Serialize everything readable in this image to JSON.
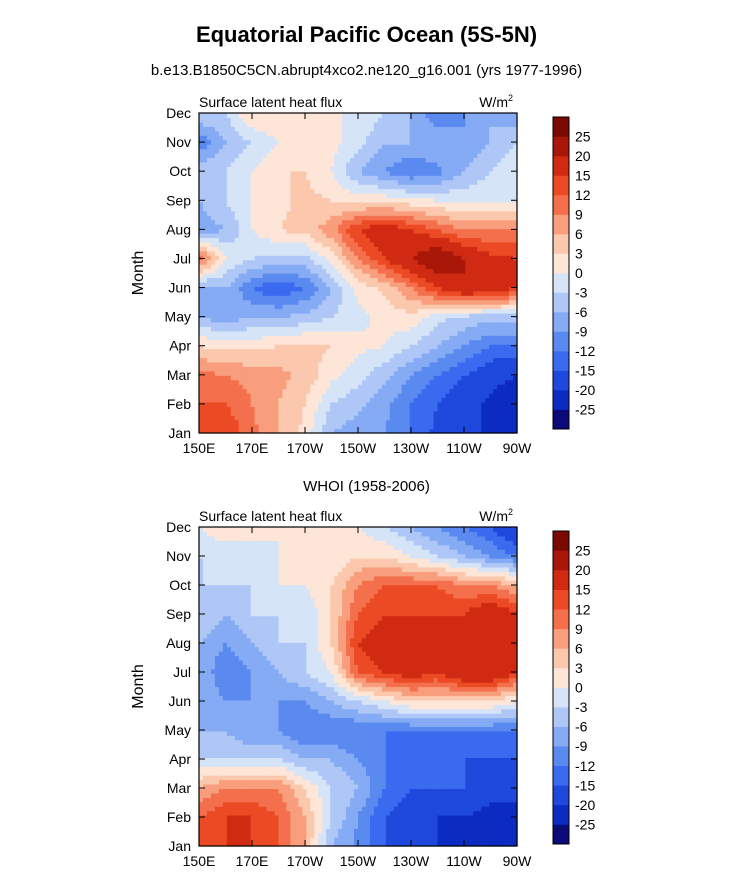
{
  "figure": {
    "title": "Equatorial Pacific Ocean (5S-5N)",
    "subtitle": "b.e13.B1850C5CN.abrupt4xco2.ne120_g16.001 (yrs 1977-1996)"
  },
  "chart_data": [
    {
      "type": "heatmap",
      "title": "",
      "left_label": "Surface latent heat flux",
      "units_label": "W/m",
      "units_superscript": "2",
      "xlabel": "",
      "ylabel": "Month",
      "x_ticks": [
        "150E",
        "170E",
        "170W",
        "150W",
        "130W",
        "110W",
        "90W"
      ],
      "y_ticks": [
        "Jan",
        "Feb",
        "Mar",
        "Apr",
        "May",
        "Jun",
        "Jul",
        "Aug",
        "Sep",
        "Oct",
        "Nov",
        "Dec"
      ],
      "colorbar_labels": [
        "25",
        "20",
        "15",
        "12",
        "9",
        "6",
        "3",
        "0",
        "-3",
        "-6",
        "-9",
        "-12",
        "-15",
        "-20",
        "-25"
      ],
      "values": [
        [
          12,
          15,
          10,
          6,
          2,
          -6,
          -8,
          -9,
          -12,
          -16,
          -20,
          -20,
          -25
        ],
        [
          12,
          12,
          9,
          6,
          3,
          -3,
          -5,
          -8,
          -12,
          -15,
          -18,
          -21,
          -25
        ],
        [
          10,
          9,
          8,
          7,
          5,
          1,
          -2,
          -5,
          -9,
          -12,
          -15,
          -18,
          -20
        ],
        [
          3,
          2,
          2,
          3,
          4,
          3,
          1,
          0,
          -3,
          -6,
          -9,
          -12,
          -12
        ],
        [
          -6,
          -8,
          -6,
          -6,
          -5,
          -3,
          -1,
          1,
          2,
          -2,
          -4,
          -5,
          -4
        ],
        [
          -8,
          -6,
          -12,
          -15,
          -12,
          -6,
          1,
          4,
          9,
          15,
          20,
          18,
          15
        ],
        [
          12,
          0,
          -3,
          -4,
          -4,
          1,
          9,
          15,
          20,
          25,
          20,
          16,
          15
        ],
        [
          -8,
          -6,
          0,
          3,
          4,
          8,
          15,
          18,
          15,
          12,
          9,
          9,
          10
        ],
        [
          -6,
          -3,
          0,
          2,
          4,
          3,
          2,
          2,
          1,
          0,
          -1,
          0,
          0
        ],
        [
          -3,
          -3,
          0,
          3,
          3,
          0,
          -6,
          -9,
          -12,
          -10,
          -6,
          -3,
          0
        ],
        [
          -12,
          -6,
          -3,
          0,
          3,
          1,
          -2,
          -6,
          -6,
          -6,
          -9,
          -6,
          -3
        ],
        [
          -3,
          -3,
          3,
          3,
          3,
          0,
          0,
          -3,
          -6,
          -12,
          -9,
          -6,
          -9
        ]
      ]
    },
    {
      "type": "heatmap",
      "title": "WHOI (1958-2006)",
      "left_label": "Surface latent heat flux",
      "units_label": "W/m",
      "units_superscript": "2",
      "xlabel": "",
      "ylabel": "Month",
      "x_ticks": [
        "150E",
        "170E",
        "170W",
        "150W",
        "130W",
        "110W",
        "90W"
      ],
      "y_ticks": [
        "Jan",
        "Feb",
        "Mar",
        "Apr",
        "May",
        "Jun",
        "Jul",
        "Aug",
        "Sep",
        "Oct",
        "Nov",
        "Dec"
      ],
      "colorbar_labels": [
        "25",
        "20",
        "15",
        "12",
        "9",
        "6",
        "3",
        "0",
        "-3",
        "-6",
        "-9",
        "-12",
        "-15",
        "-20",
        "-25"
      ],
      "values": [
        [
          12,
          15,
          15,
          12,
          6,
          -6,
          -10,
          -15,
          -18,
          -20,
          -25,
          -25,
          -25
        ],
        [
          12,
          15,
          15,
          12,
          6,
          -3,
          -9,
          -15,
          -18,
          -20,
          -20,
          -22,
          -22
        ],
        [
          6,
          9,
          9,
          9,
          3,
          -3,
          -6,
          -12,
          -15,
          -15,
          -15,
          -18,
          -18
        ],
        [
          -3,
          -3,
          -3,
          -3,
          -6,
          -6,
          -9,
          -12,
          -15,
          -15,
          -15,
          -15,
          -15
        ],
        [
          -6,
          -6,
          -9,
          -9,
          -12,
          -12,
          -12,
          -12,
          -12,
          -12,
          -12,
          -12,
          -12
        ],
        [
          -6,
          -9,
          -9,
          -9,
          -9,
          -6,
          -3,
          0,
          3,
          3,
          3,
          3,
          0
        ],
        [
          -6,
          -12,
          -9,
          -6,
          -3,
          0,
          12,
          15,
          18,
          15,
          20,
          20,
          15
        ],
        [
          -6,
          -9,
          -6,
          -3,
          -3,
          3,
          15,
          18,
          20,
          15,
          18,
          20,
          15
        ],
        [
          -3,
          -6,
          -3,
          -3,
          -3,
          3,
          12,
          15,
          15,
          15,
          15,
          20,
          15
        ],
        [
          -3,
          -3,
          -3,
          0,
          0,
          3,
          9,
          12,
          12,
          12,
          9,
          9,
          6
        ],
        [
          -3,
          -3,
          -3,
          0,
          0,
          0,
          3,
          3,
          0,
          -3,
          -6,
          -9,
          -12
        ],
        [
          0,
          3,
          3,
          0,
          0,
          0,
          0,
          -3,
          -6,
          -9,
          -12,
          -15,
          -20
        ]
      ]
    }
  ],
  "colors": {
    "palette": [
      "#0a0a78",
      "#0c2bc0",
      "#1f48dc",
      "#3a6af0",
      "#5a8aef",
      "#85abf4",
      "#aec7f6",
      "#d6e4f8",
      "#fde6d7",
      "#fbc8ad",
      "#f89e7c",
      "#f4704d",
      "#ec4a25",
      "#d02a12",
      "#a81708",
      "#7a0a00"
    ],
    "levels": [
      -25,
      -20,
      -15,
      -12,
      -9,
      -6,
      -3,
      0,
      3,
      6,
      9,
      12,
      15,
      20,
      25
    ]
  }
}
